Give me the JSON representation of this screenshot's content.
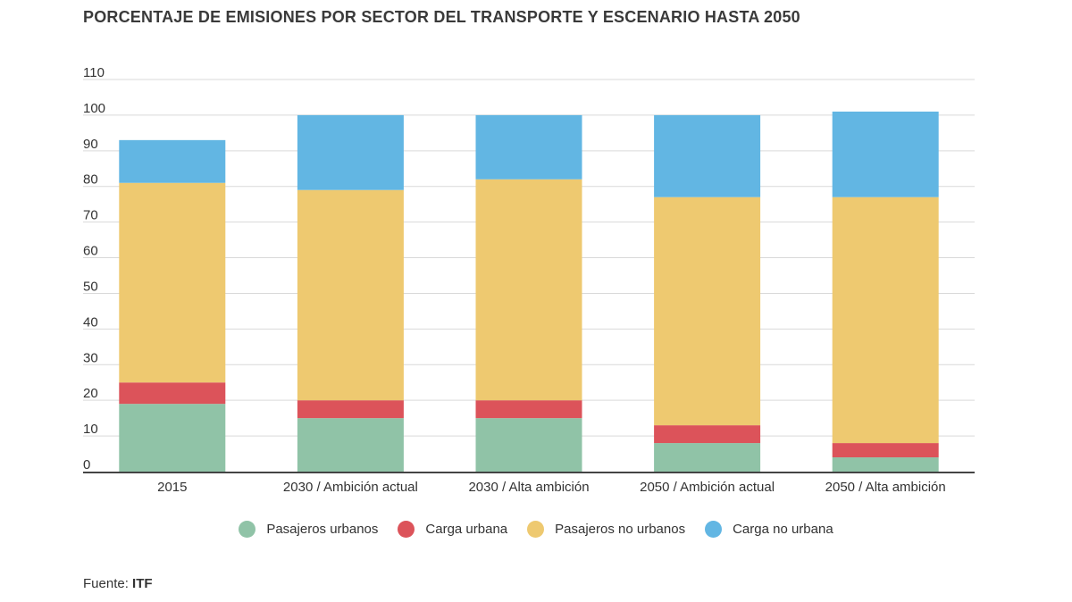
{
  "title": "PORCENTAJE DE EMISIONES POR SECTOR DEL TRANSPORTE Y ESCENARIO HASTA 2050",
  "source_label": "Fuente:",
  "source_value": "ITF",
  "chart_data": {
    "type": "bar",
    "stacked": true,
    "title": "PORCENTAJE DE EMISIONES POR SECTOR DEL TRANSPORTE Y ESCENARIO HASTA 2050",
    "xlabel": "",
    "ylabel": "",
    "ylim": [
      0,
      110
    ],
    "yticks": [
      0,
      10,
      20,
      30,
      40,
      50,
      60,
      70,
      80,
      90,
      100,
      110
    ],
    "grid": true,
    "legend_position": "bottom",
    "categories": [
      "2015",
      "2030 / Ambición actual",
      "2030 / Alta ambición",
      "2050 / Ambición actual",
      "2050 / Alta ambición"
    ],
    "series": [
      {
        "name": "Pasajeros urbanos",
        "color": "#90c3a7",
        "values": [
          19,
          15,
          15,
          8,
          4
        ]
      },
      {
        "name": "Carga urbana",
        "color": "#dc535a",
        "values": [
          6,
          5,
          5,
          5,
          4
        ]
      },
      {
        "name": "Pasajeros no urbanos",
        "color": "#eec970",
        "values": [
          56,
          59,
          62,
          64,
          69
        ]
      },
      {
        "name": "Carga no urbana",
        "color": "#62b6e3",
        "values": [
          12,
          21,
          18,
          23,
          24
        ]
      }
    ]
  }
}
